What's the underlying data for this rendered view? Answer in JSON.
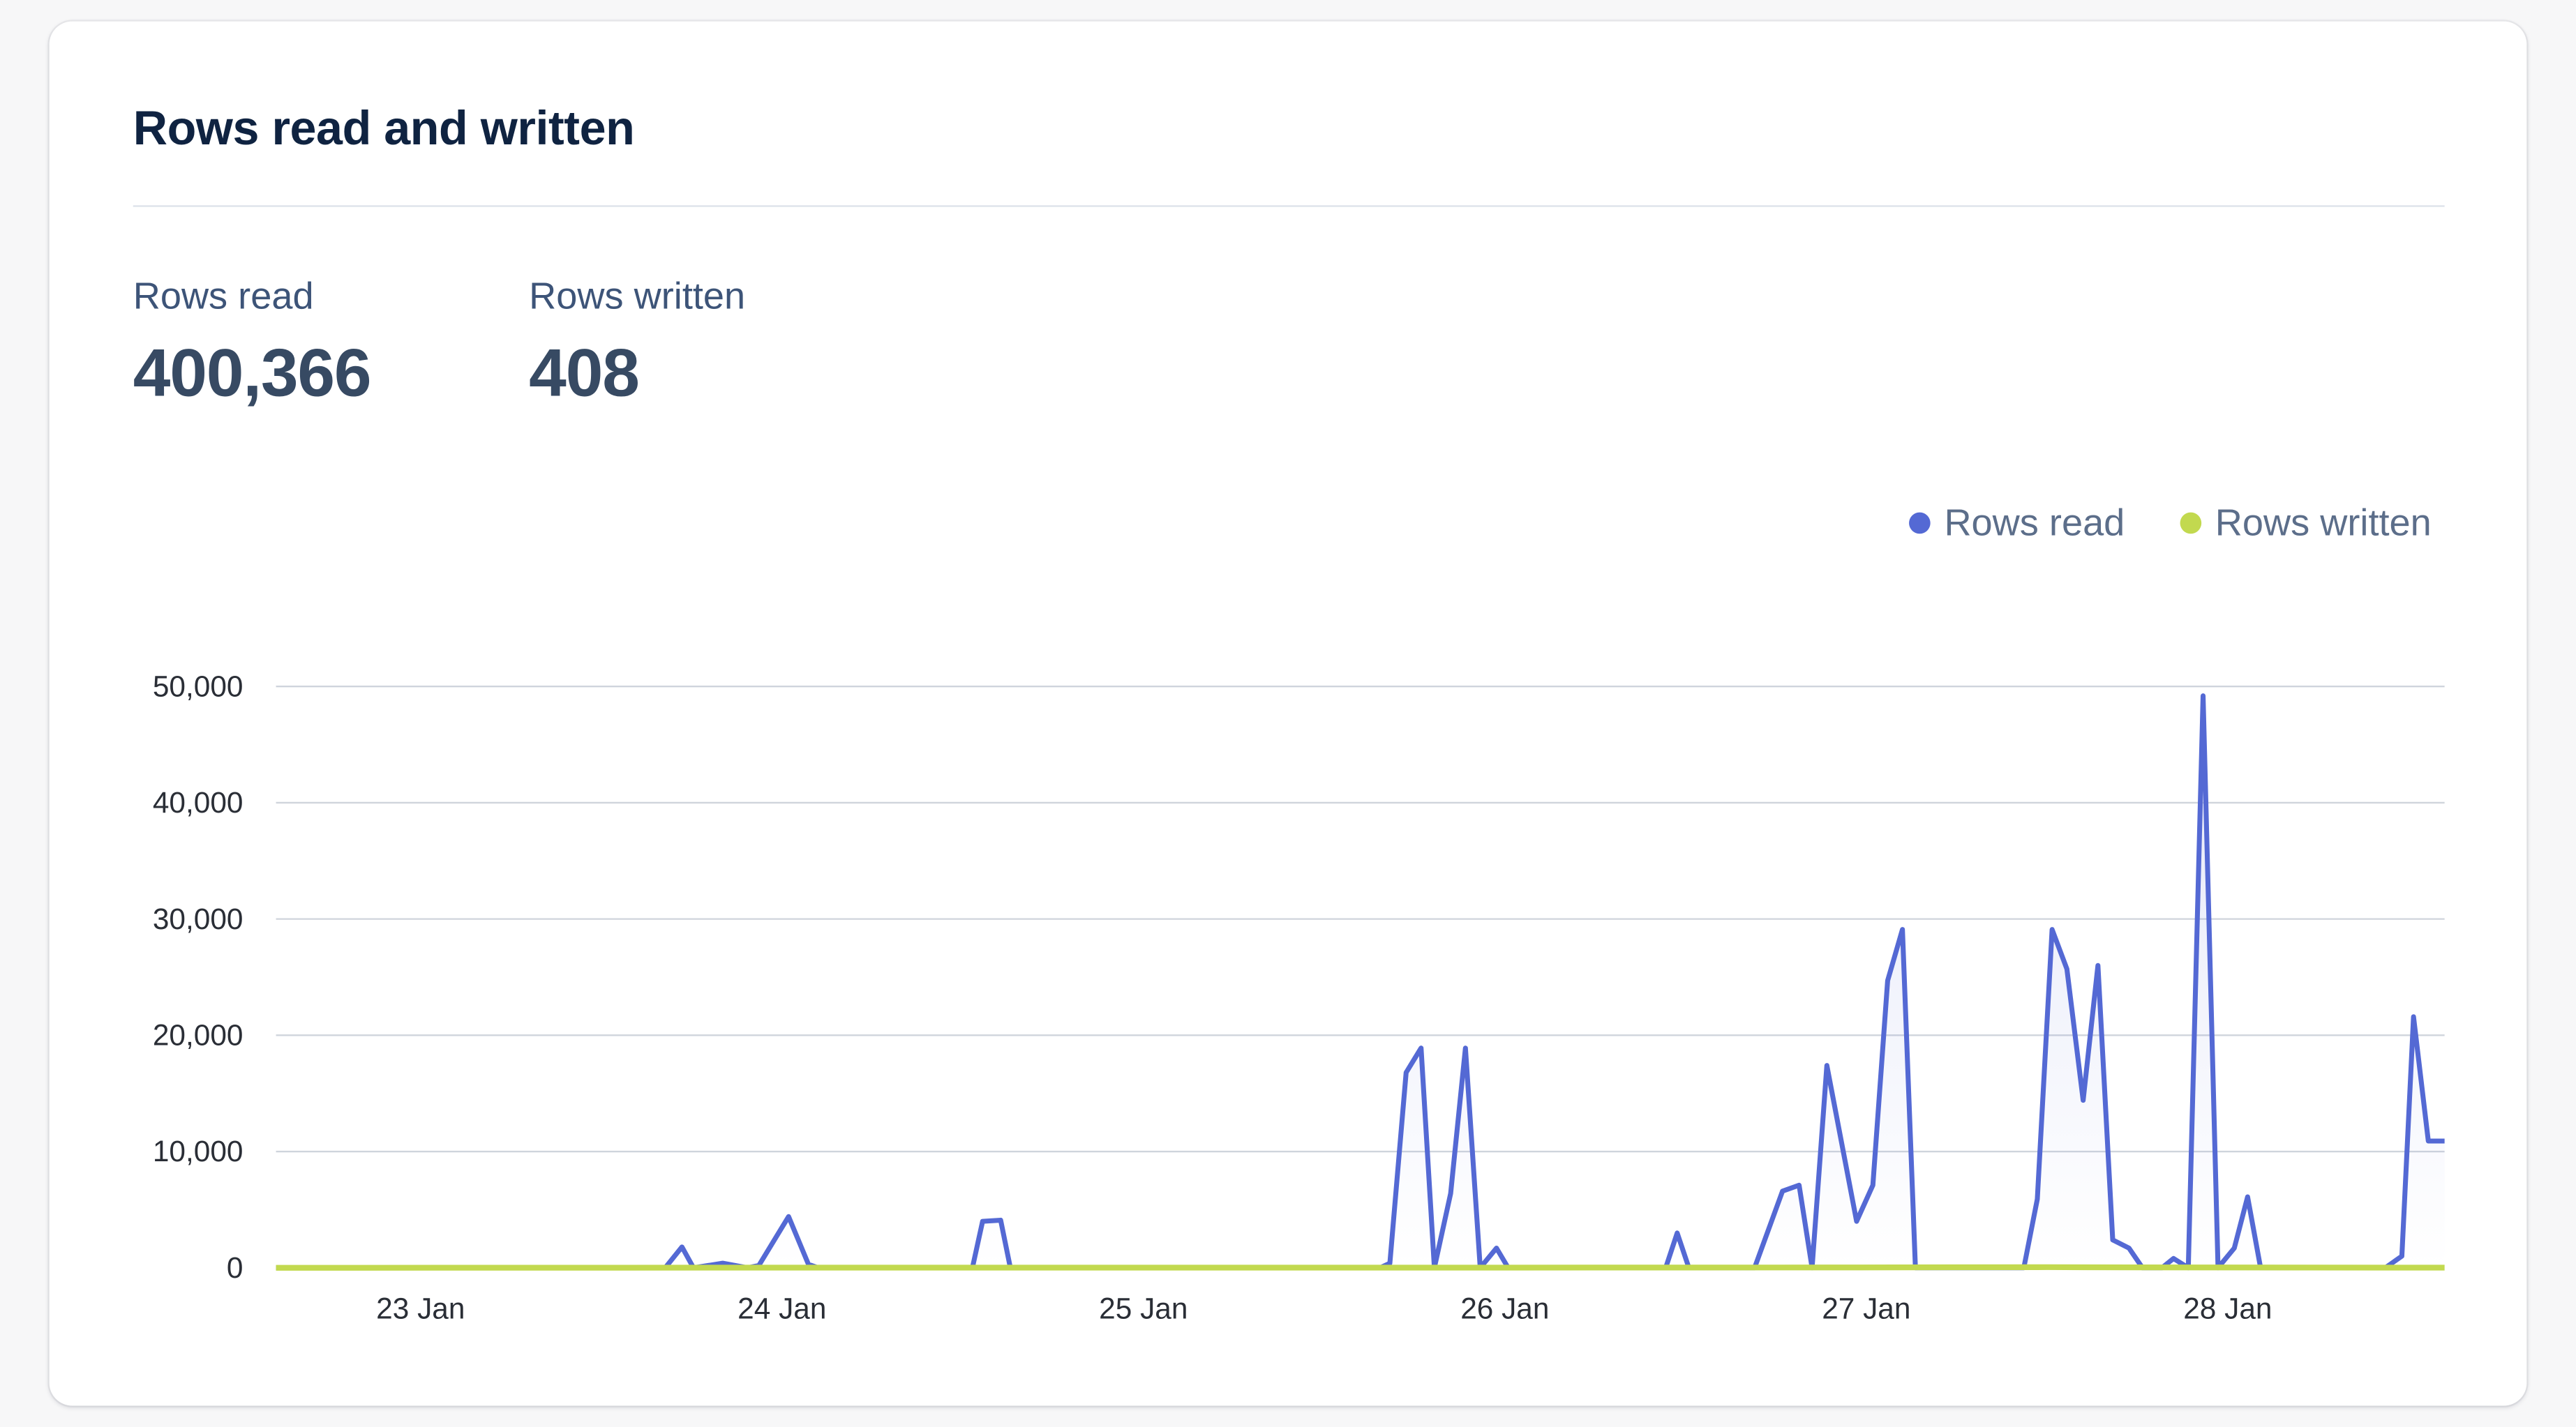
{
  "card": {
    "title": "Rows read and written",
    "stats": [
      {
        "label": "Rows read",
        "value": "400,366"
      },
      {
        "label": "Rows written",
        "value": "408"
      }
    ],
    "legend": [
      {
        "label": "Rows read",
        "color": "#5469d4"
      },
      {
        "label": "Rows written",
        "color": "#c2d94f"
      }
    ]
  },
  "chart_data": {
    "type": "area",
    "title": "Rows read and written",
    "xlabel": "",
    "ylabel": "",
    "x_unit": "days since 23 Jan (fractional)",
    "x_range": [
      -0.4,
      5.6
    ],
    "x_ticks": [
      {
        "pos": 0,
        "label": "23 Jan"
      },
      {
        "pos": 1,
        "label": "24 Jan"
      },
      {
        "pos": 2,
        "label": "25 Jan"
      },
      {
        "pos": 3,
        "label": "26 Jan"
      },
      {
        "pos": 4,
        "label": "27 Jan"
      },
      {
        "pos": 5,
        "label": "28 Jan"
      }
    ],
    "y_ticks": [
      0,
      10000,
      20000,
      30000,
      40000,
      50000
    ],
    "y_tick_labels": [
      "0",
      "10,000",
      "20,000",
      "30,000",
      "40,000",
      "50,000"
    ],
    "ylim": [
      0,
      50000
    ],
    "grid": true,
    "legend_position": "top-right",
    "series": [
      {
        "name": "Rows read",
        "color": "#5469d4",
        "fill": true,
        "points": [
          [
            -0.4,
            0
          ],
          [
            0.677,
            0
          ],
          [
            0.723,
            1800
          ],
          [
            0.755,
            0
          ],
          [
            0.836,
            400
          ],
          [
            0.905,
            0
          ],
          [
            0.936,
            200
          ],
          [
            1.018,
            4400
          ],
          [
            1.073,
            300
          ],
          [
            1.1,
            0
          ],
          [
            1.527,
            0
          ],
          [
            1.555,
            4000
          ],
          [
            1.605,
            4100
          ],
          [
            1.632,
            0
          ],
          [
            2.655,
            0
          ],
          [
            2.682,
            400
          ],
          [
            2.727,
            16800
          ],
          [
            2.768,
            18900
          ],
          [
            2.805,
            0
          ],
          [
            2.85,
            6400
          ],
          [
            2.891,
            18900
          ],
          [
            2.932,
            0
          ],
          [
            2.977,
            1700
          ],
          [
            3.009,
            0
          ],
          [
            3.445,
            0
          ],
          [
            3.477,
            3000
          ],
          [
            3.509,
            0
          ],
          [
            3.691,
            0
          ],
          [
            3.768,
            6600
          ],
          [
            3.814,
            7100
          ],
          [
            3.85,
            0
          ],
          [
            3.891,
            17400
          ],
          [
            3.973,
            4000
          ],
          [
            4.018,
            7100
          ],
          [
            4.059,
            24700
          ],
          [
            4.1,
            29100
          ],
          [
            4.136,
            0
          ],
          [
            4.436,
            0
          ],
          [
            4.473,
            5900
          ],
          [
            4.514,
            29100
          ],
          [
            4.555,
            25700
          ],
          [
            4.6,
            14400
          ],
          [
            4.641,
            26000
          ],
          [
            4.682,
            2400
          ],
          [
            4.727,
            1700
          ],
          [
            4.764,
            0
          ],
          [
            4.818,
            0
          ],
          [
            4.85,
            800
          ],
          [
            4.891,
            0
          ],
          [
            4.932,
            49200
          ],
          [
            4.973,
            0
          ],
          [
            5.018,
            1700
          ],
          [
            5.055,
            6100
          ],
          [
            5.091,
            0
          ],
          [
            5.436,
            0
          ],
          [
            5.482,
            1000
          ],
          [
            5.514,
            21600
          ],
          [
            5.555,
            10900
          ],
          [
            5.6,
            10900
          ]
        ]
      },
      {
        "name": "Rows written",
        "color": "#c2d94f",
        "fill": false,
        "points": [
          [
            -0.4,
            0
          ],
          [
            1.0,
            10
          ],
          [
            2.8,
            20
          ],
          [
            3.9,
            30
          ],
          [
            4.5,
            60
          ],
          [
            4.6,
            40
          ],
          [
            4.93,
            30
          ],
          [
            5.5,
            20
          ],
          [
            5.6,
            10
          ]
        ]
      }
    ]
  }
}
